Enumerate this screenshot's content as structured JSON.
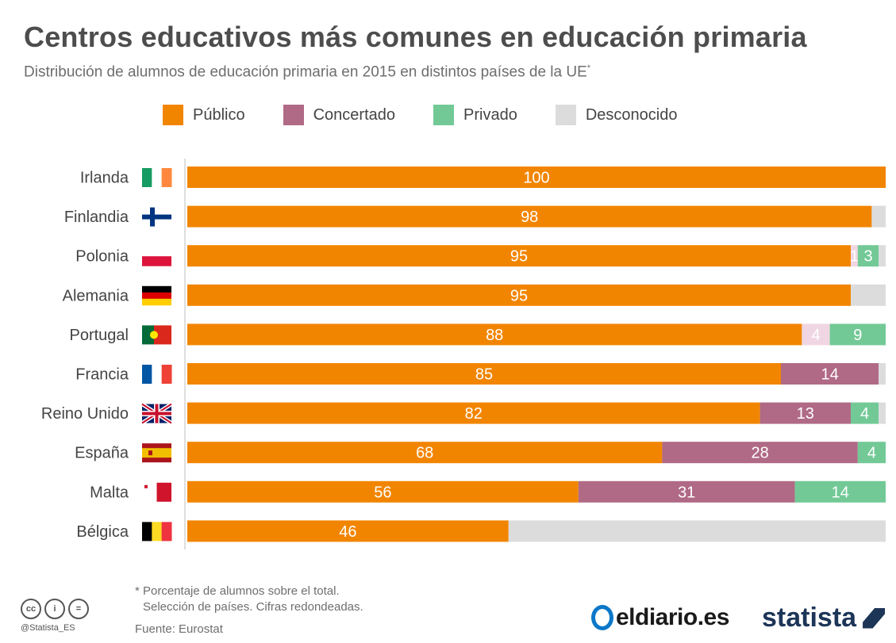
{
  "title": "Centros educativos más comunes en educación primaria",
  "subtitle": "Distribución de alumnos de educación primaria en 2015 en distintos países de la UE",
  "subtitle_mark": "*",
  "colors": {
    "publico": "#f28500",
    "concertado": "#b06a85",
    "privado": "#72c996",
    "desconocido": "#dcdcdc",
    "desconocido_partial": "#f0d6e2"
  },
  "legend": [
    {
      "label": "Público",
      "color": "#f28500"
    },
    {
      "label": "Concertado",
      "color": "#b06a85"
    },
    {
      "label": "Privado",
      "color": "#72c996"
    },
    {
      "label": "Desconocido",
      "color": "#dcdcdc"
    }
  ],
  "chart_data": {
    "type": "bar",
    "orientation": "horizontal",
    "stacked": true,
    "xlim": [
      0,
      100
    ],
    "categories": [
      "Irlanda",
      "Finlandia",
      "Polonia",
      "Alemania",
      "Portugal",
      "Francia",
      "Reino Unido",
      "España",
      "Malta",
      "Bélgica"
    ],
    "flags": [
      "ireland-flag-icon",
      "finland-flag-icon",
      "poland-flag-icon",
      "germany-flag-icon",
      "portugal-flag-icon",
      "france-flag-icon",
      "uk-flag-icon",
      "spain-flag-icon",
      "malta-flag-icon",
      "belgium-flag-icon"
    ],
    "series": [
      {
        "name": "Público",
        "values": [
          100,
          98,
          95,
          95,
          88,
          85,
          82,
          68,
          56,
          46
        ]
      },
      {
        "name": "Concertado",
        "values": [
          0,
          0,
          1,
          0,
          4,
          14,
          13,
          28,
          31,
          0
        ]
      },
      {
        "name": "Privado",
        "values": [
          0,
          0,
          3,
          0,
          9,
          0,
          4,
          4,
          14,
          0
        ]
      },
      {
        "name": "Desconocido",
        "values": [
          0,
          2,
          1,
          5,
          0,
          1,
          1,
          0,
          0,
          54
        ]
      }
    ],
    "data_labels": {
      "Público": [
        "100",
        "98",
        "95",
        "95",
        "88",
        "85",
        "82",
        "68",
        "56",
        "46"
      ],
      "Concertado": [
        "",
        "",
        "1",
        "",
        "4",
        "14",
        "13",
        "28",
        "31",
        ""
      ],
      "Privado": [
        "",
        "",
        "3",
        "",
        "9",
        "",
        "4",
        "4",
        "14",
        ""
      ],
      "Desconocido": [
        "",
        "",
        "",
        "",
        "",
        "",
        "",
        "",
        "",
        ""
      ]
    },
    "legend_position": "top",
    "grid": false
  },
  "footnote": {
    "line1": "* Porcentaje de alumnos sobre el total.",
    "line2": "Selección de países. Cifras redondeadas.",
    "source": "Fuente: Eurostat"
  },
  "handle": "@Statista_ES",
  "logos": {
    "eldiario": "eldiario.es",
    "statista": "statista"
  }
}
